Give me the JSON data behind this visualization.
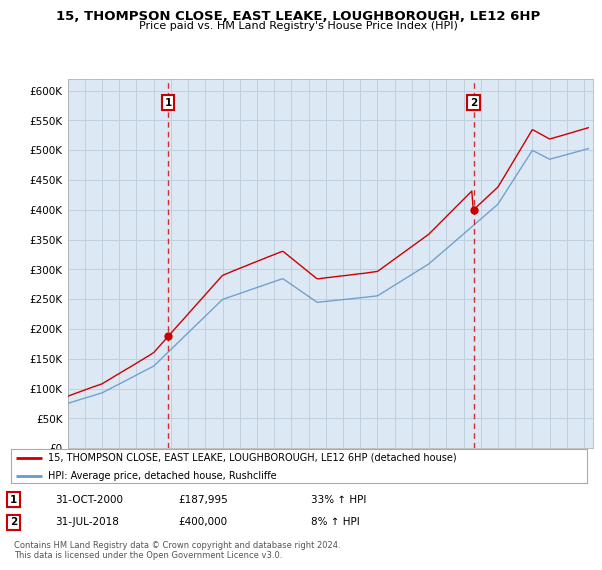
{
  "title": "15, THOMPSON CLOSE, EAST LEAKE, LOUGHBOROUGH, LE12 6HP",
  "subtitle": "Price paid vs. HM Land Registry's House Price Index (HPI)",
  "ylim": [
    0,
    620000
  ],
  "yticks": [
    0,
    50000,
    100000,
    150000,
    200000,
    250000,
    300000,
    350000,
    400000,
    450000,
    500000,
    550000,
    600000
  ],
  "xlim_start": 1995.0,
  "xlim_end": 2025.5,
  "sale1_date": 2000.83,
  "sale1_price": 187995,
  "sale1_label": "1",
  "sale2_date": 2018.58,
  "sale2_price": 400000,
  "sale2_label": "2",
  "legend_line1": "15, THOMPSON CLOSE, EAST LEAKE, LOUGHBOROUGH, LE12 6HP (detached house)",
  "legend_line2": "HPI: Average price, detached house, Rushcliffe",
  "table_row1_num": "1",
  "table_row1_date": "31-OCT-2000",
  "table_row1_price": "£187,995",
  "table_row1_hpi": "33% ↑ HPI",
  "table_row2_num": "2",
  "table_row2_date": "31-JUL-2018",
  "table_row2_price": "£400,000",
  "table_row2_hpi": "8% ↑ HPI",
  "footnote": "Contains HM Land Registry data © Crown copyright and database right 2024.\nThis data is licensed under the Open Government Licence v3.0.",
  "red_color": "#cc0000",
  "blue_color": "#6699cc",
  "chart_bg": "#dce9f5",
  "background_color": "#ffffff",
  "grid_color": "#c0d0e0"
}
